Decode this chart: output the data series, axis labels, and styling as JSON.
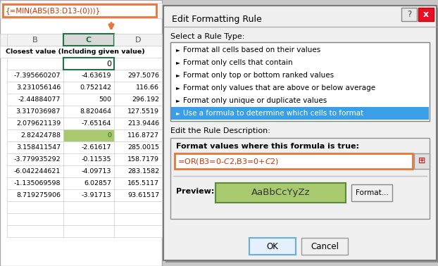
{
  "formula_bar_text": "{=MIN(ABS(B3:D13-(0)))}",
  "formula_bar_border": "#E8763A",
  "arrow_color": "#E8763A",
  "col_headers": [
    "B",
    "C",
    "D"
  ],
  "row_title": "Closest value (Including given value)",
  "input_value": "0",
  "col_C_header_fg": "#217346",
  "col_C_header_border": "#217346",
  "input_cell_border": "#217346",
  "highlighted_cell_bg": "#a8c96e",
  "data_rows": [
    [
      "-7.395660207",
      "-4.63619",
      "297.5076"
    ],
    [
      "3.231056146",
      "0.752142",
      "116.66"
    ],
    [
      "-2.44884077",
      "500",
      "296.192"
    ],
    [
      "3.317036987",
      "8.820464",
      "127.5519"
    ],
    [
      "2.079621139",
      "-7.65164",
      "213.9446"
    ],
    [
      "2.82424788",
      "0",
      "116.8727"
    ],
    [
      "3.158411547",
      "-2.61617",
      "285.0015"
    ],
    [
      "-3.779935292",
      "-0.11535",
      "158.7179"
    ],
    [
      "-6.042244621",
      "-4.09713",
      "283.1582"
    ],
    [
      "-1.135069598",
      "6.02857",
      "165.5117"
    ],
    [
      "8.719275906",
      "-3.91713",
      "93.61517"
    ]
  ],
  "highlighted_row_index": 5,
  "dialog_title": "Edit Formatting Rule",
  "section_label_1": "Select a Rule Type:",
  "rule_types": [
    "Format all cells based on their values",
    "Format only cells that contain",
    "Format only top or bottom ranked values",
    "Format only values that are above or below average",
    "Format only unique or duplicate values",
    "Use a formula to determine which cells to format"
  ],
  "selected_rule_idx": 5,
  "selected_rule_bg": "#3b9fe8",
  "selected_rule_fg": "#ffffff",
  "section_label_2": "Edit the Rule Description:",
  "formula_label": "Format values where this formula is true:",
  "formula_input": "=OR(B3=0-$C$2,B3=0+$C$2)",
  "formula_input_border": "#E8763A",
  "preview_text": "AaBbCcYyZz",
  "preview_bg": "#a8c96e",
  "format_btn": "Format...",
  "ok_btn": "OK",
  "cancel_btn": "Cancel"
}
